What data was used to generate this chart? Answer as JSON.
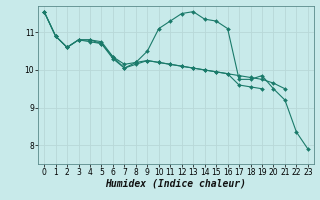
{
  "title": "",
  "xlabel": "Humidex (Indice chaleur)",
  "background_color": "#c8eaea",
  "grid_color": "#b8d8d8",
  "line_color": "#1a7a6a",
  "xlim": [
    -0.5,
    23.5
  ],
  "ylim": [
    7.5,
    11.7
  ],
  "yticks": [
    8,
    9,
    10,
    11
  ],
  "xticks": [
    0,
    1,
    2,
    3,
    4,
    5,
    6,
    7,
    8,
    9,
    10,
    11,
    12,
    13,
    14,
    15,
    16,
    17,
    18,
    19,
    20,
    21,
    22,
    23
  ],
  "series": [
    [
      11.55,
      10.9,
      10.6,
      10.8,
      10.8,
      10.7,
      10.3,
      10.05,
      10.2,
      10.5,
      11.1,
      11.3,
      11.5,
      11.55,
      11.35,
      11.3,
      11.1,
      9.75,
      9.75,
      9.85,
      9.5,
      9.2,
      8.35,
      7.9
    ],
    [
      11.55,
      10.9,
      10.6,
      10.8,
      10.8,
      10.75,
      10.35,
      10.15,
      10.2,
      10.25,
      10.2,
      10.15,
      10.1,
      10.05,
      10.0,
      9.95,
      9.9,
      9.85,
      9.8,
      9.75,
      9.65,
      9.5,
      null,
      null
    ],
    [
      11.55,
      10.9,
      10.6,
      10.8,
      10.75,
      10.7,
      10.35,
      10.05,
      10.15,
      10.25,
      10.2,
      10.15,
      10.1,
      10.05,
      10.0,
      9.95,
      9.9,
      9.6,
      9.55,
      9.5,
      null,
      null,
      null,
      null
    ]
  ],
  "xlabel_fontsize": 7,
  "tick_fontsize": 5.5
}
